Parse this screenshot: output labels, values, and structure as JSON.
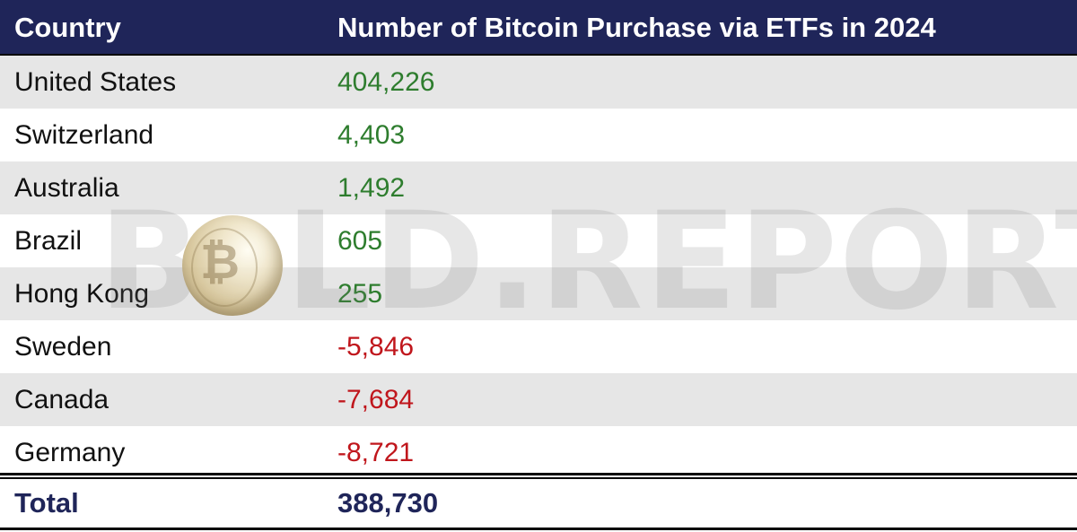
{
  "header": {
    "country_label": "Country",
    "value_label": "Number of Bitcoin Purchase via ETFs in 2024"
  },
  "rows": [
    {
      "country": "United States",
      "value": "404,226",
      "sign": "positive"
    },
    {
      "country": "Switzerland",
      "value": "4,403",
      "sign": "positive"
    },
    {
      "country": "Australia",
      "value": "1,492",
      "sign": "positive"
    },
    {
      "country": "Brazil",
      "value": "605",
      "sign": "positive"
    },
    {
      "country": "Hong Kong",
      "value": "255",
      "sign": "positive"
    },
    {
      "country": "Sweden",
      "value": "-5,846",
      "sign": "negative"
    },
    {
      "country": "Canada",
      "value": "-7,684",
      "sign": "negative"
    },
    {
      "country": "Germany",
      "value": "-8,721",
      "sign": "negative"
    }
  ],
  "total": {
    "label": "Total",
    "value": "388,730"
  },
  "watermark": {
    "text_b": "B",
    "text_rest": "LD.REPORT",
    "coin_glyph": "₿"
  },
  "colors": {
    "header_bg": "#1f2559",
    "positive": "#2e7d2e",
    "negative": "#c0161c",
    "row_shade": "#e6e6e6"
  }
}
